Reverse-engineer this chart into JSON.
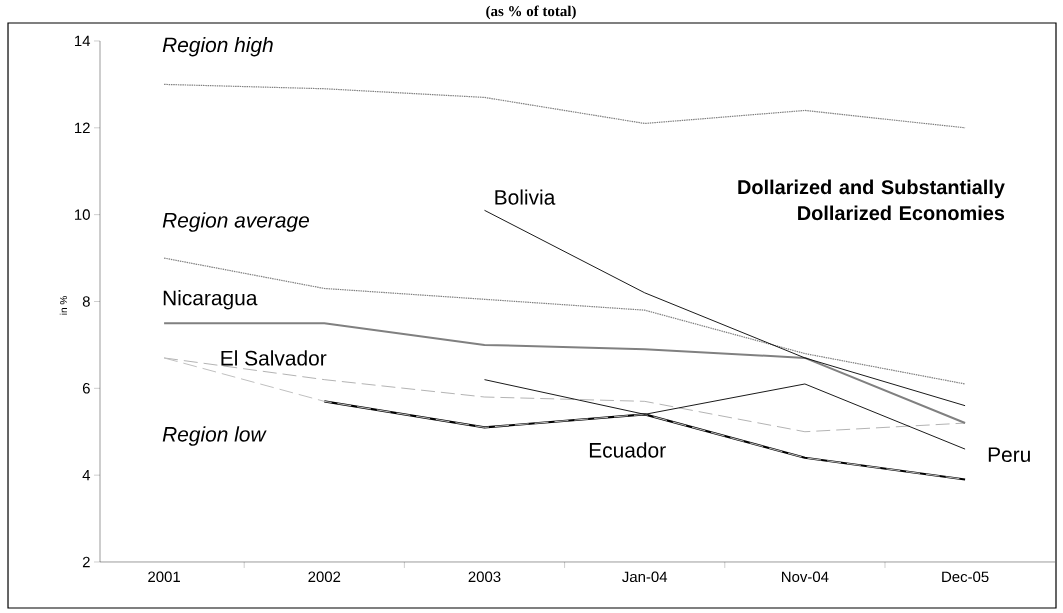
{
  "chart_data": {
    "type": "line",
    "title": "(as % of total)",
    "ylabel": "in %",
    "categories": [
      "2001",
      "2002",
      "2003",
      "Jan-04",
      "Nov-04",
      "Dec-05"
    ],
    "series": [
      {
        "name": "Region high",
        "color": "#808080",
        "line_style": "dotted",
        "values": [
          13.0,
          12.9,
          12.7,
          12.1,
          12.4,
          12.0
        ]
      },
      {
        "name": "Region average",
        "color": "#808080",
        "line_style": "dotted",
        "values": [
          9.0,
          8.3,
          8.05,
          7.8,
          6.8,
          6.1
        ]
      },
      {
        "name": "Nicaragua",
        "color": "#808080",
        "line_style": "solid",
        "values": [
          7.5,
          7.5,
          7.0,
          6.9,
          6.7,
          5.2
        ]
      },
      {
        "name": "El Salvador",
        "color": "#808080",
        "line_style": "dashed",
        "values": [
          6.7,
          6.2,
          5.8,
          5.7,
          5.0,
          5.2
        ]
      },
      {
        "name": "Ecuador",
        "color": "#000000",
        "line_style": "solid",
        "values": [
          null,
          5.7,
          5.1,
          5.4,
          4.4,
          3.9
        ]
      },
      {
        "name": "Region low",
        "color": "#c0c0c0",
        "line_style": "dashed",
        "values": [
          6.7,
          5.7,
          5.1,
          5.4,
          4.4,
          3.9
        ]
      },
      {
        "name": "Peru",
        "color": "#000000",
        "line_style": "solid",
        "values": [
          null,
          null,
          6.2,
          5.4,
          6.1,
          4.6
        ]
      },
      {
        "name": "Bolivia",
        "color": "#000000",
        "line_style": "solid",
        "values": [
          null,
          null,
          10.1,
          8.2,
          6.7,
          5.6
        ]
      }
    ],
    "ylim": [
      2,
      14
    ],
    "yticks": [
      2,
      4,
      6,
      8,
      10,
      12,
      14
    ],
    "annotations": [
      "**Dollarized and Substantially Dollarized Economies**"
    ],
    "grid": false
  }
}
